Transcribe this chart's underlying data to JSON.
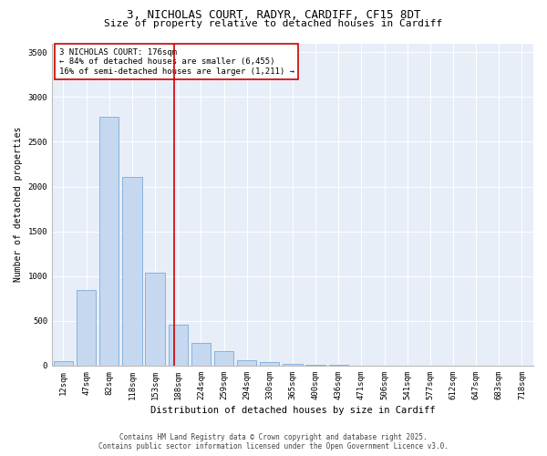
{
  "title_line1": "3, NICHOLAS COURT, RADYR, CARDIFF, CF15 8DT",
  "title_line2": "Size of property relative to detached houses in Cardiff",
  "xlabel": "Distribution of detached houses by size in Cardiff",
  "ylabel": "Number of detached properties",
  "categories": [
    "12sqm",
    "47sqm",
    "82sqm",
    "118sqm",
    "153sqm",
    "188sqm",
    "224sqm",
    "259sqm",
    "294sqm",
    "330sqm",
    "365sqm",
    "400sqm",
    "436sqm",
    "471sqm",
    "506sqm",
    "541sqm",
    "577sqm",
    "612sqm",
    "647sqm",
    "683sqm",
    "718sqm"
  ],
  "values": [
    55,
    840,
    2780,
    2110,
    1040,
    460,
    250,
    160,
    65,
    40,
    20,
    10,
    5,
    2,
    1,
    0,
    0,
    0,
    0,
    0,
    0
  ],
  "bar_color": "#c5d8f0",
  "bar_edge_color": "#7aaadc",
  "vline_color": "#cc0000",
  "vline_pos": 4.85,
  "annotation_text_line1": "3 NICHOLAS COURT: 176sqm",
  "annotation_text_line2": "← 84% of detached houses are smaller (6,455)",
  "annotation_text_line3": "16% of semi-detached houses are larger (1,211) →",
  "annotation_box_color": "#cc0000",
  "ylim": [
    0,
    3600
  ],
  "yticks": [
    0,
    500,
    1000,
    1500,
    2000,
    2500,
    3000,
    3500
  ],
  "background_color": "#e8eef8",
  "fig_background_color": "#ffffff",
  "footer_line1": "Contains HM Land Registry data © Crown copyright and database right 2025.",
  "footer_line2": "Contains public sector information licensed under the Open Government Licence v3.0.",
  "title_fontsize": 9,
  "subtitle_fontsize": 8,
  "xlabel_fontsize": 7.5,
  "ylabel_fontsize": 7,
  "tick_fontsize": 6.5,
  "annotation_fontsize": 6.5,
  "footer_fontsize": 5.5
}
